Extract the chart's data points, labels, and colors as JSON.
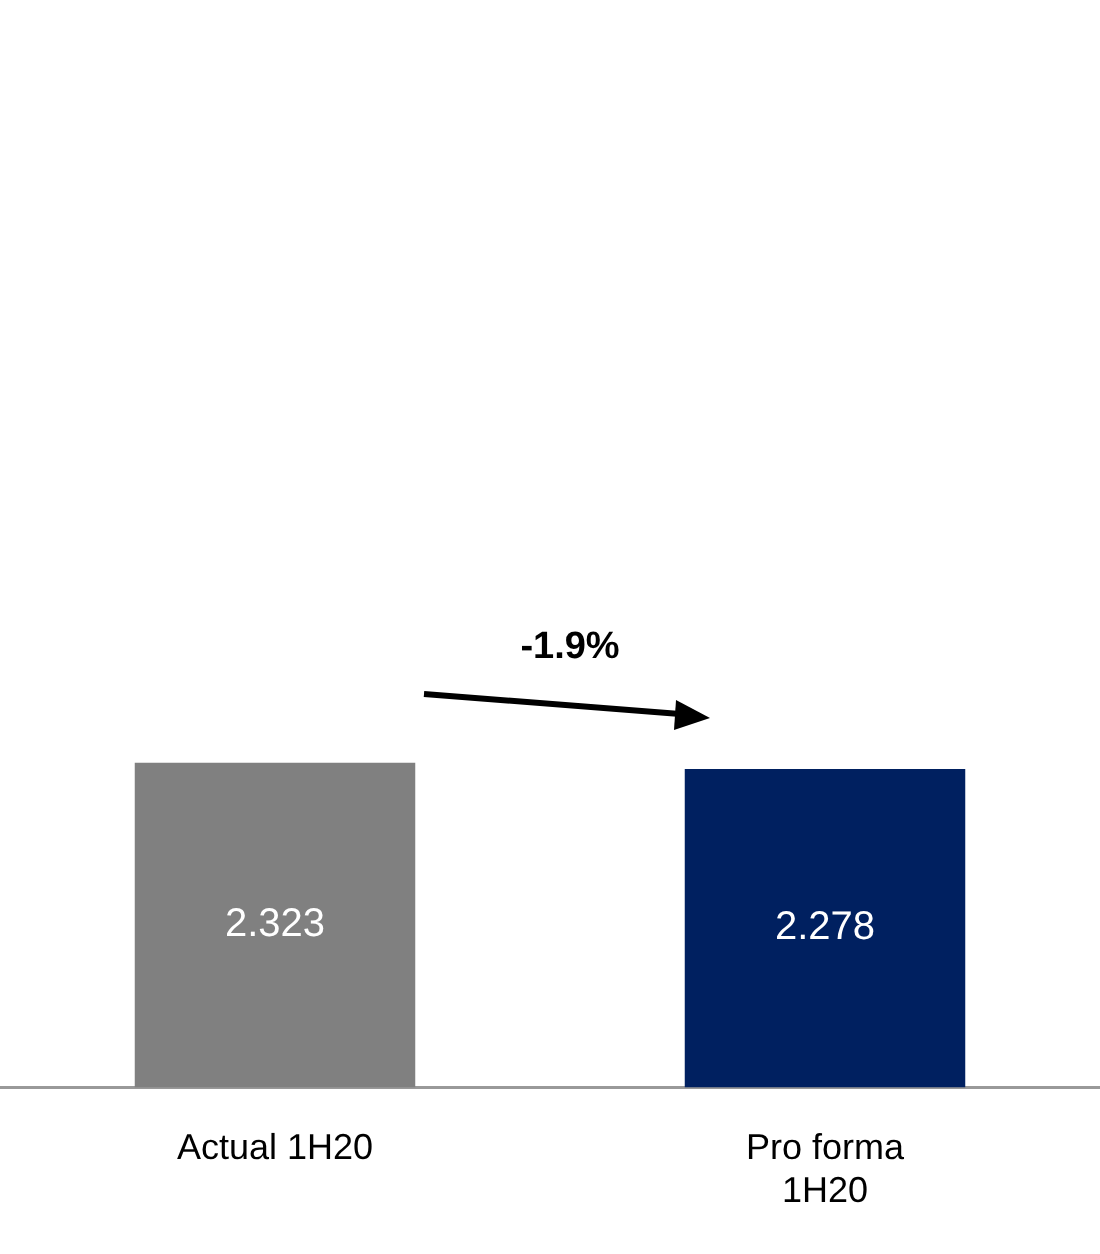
{
  "chart_data": {
    "type": "bar",
    "categories": [
      "Actual 1H20",
      "Pro forma 1H20"
    ],
    "values": [
      2.323,
      2.278
    ],
    "colors": [
      "#808080",
      "#002060"
    ],
    "data_labels": true,
    "grid": false,
    "legend": false,
    "annotations": [
      "-1.9%"
    ]
  }
}
